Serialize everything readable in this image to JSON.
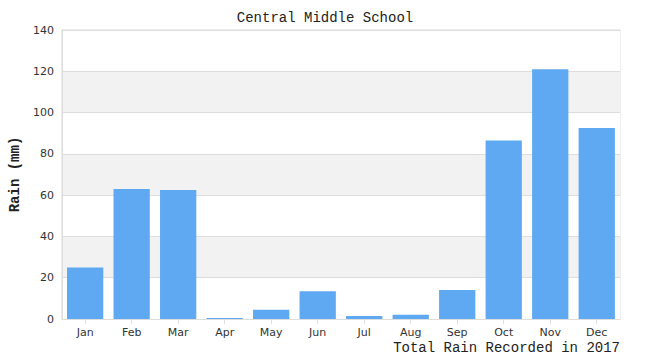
{
  "chart_data": {
    "type": "bar",
    "title": "Central Middle School",
    "xlabel": "Total Rain Recorded in 2017",
    "ylabel": "Rain (mm)",
    "categories": [
      "Jan",
      "Feb",
      "Mar",
      "Apr",
      "May",
      "Jun",
      "Jul",
      "Aug",
      "Sep",
      "Oct",
      "Nov",
      "Dec"
    ],
    "values": [
      25,
      63,
      62.5,
      0.5,
      4.5,
      13.5,
      1.5,
      2,
      14,
      86.5,
      121,
      92.5
    ],
    "color": "#5ea9f2",
    "ylim": [
      0,
      140
    ],
    "yticks": [
      0,
      20,
      40,
      60,
      80,
      100,
      120,
      140
    ],
    "grid": true
  }
}
